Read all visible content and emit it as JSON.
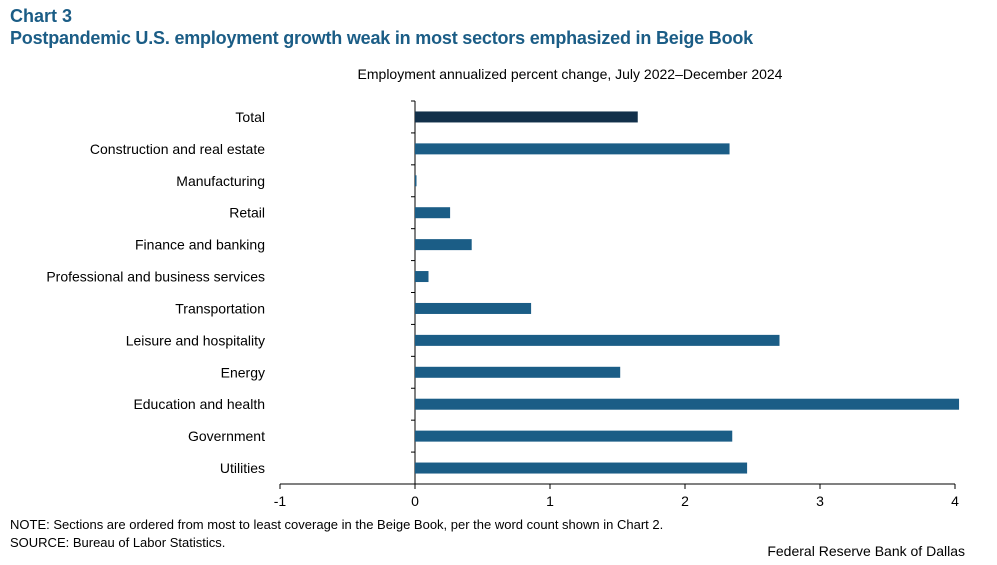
{
  "header": {
    "chart_label": "Chart 3",
    "title": "Postpandemic U.S. employment growth weak in most sectors emphasized in Beige Book"
  },
  "footer": {
    "note": "NOTE: Sections are ordered from most to least coverage in the Beige Book, per the word count shown in Chart 2.",
    "source": "SOURCE: Bureau of Labor Statistics.",
    "credit": "Federal Reserve Bank of Dallas"
  },
  "chart_data": {
    "type": "bar",
    "orientation": "horizontal",
    "title": "",
    "subtitle": "Employment annualized percent change, July 2022–December 2024",
    "xlabel": "",
    "ylabel": "",
    "categories": [
      "Total",
      "Construction and real estate",
      "Manufacturing",
      "Retail",
      "Finance and banking",
      "Professional and business services",
      "Transportation",
      "Leisure and hospitality",
      "Energy",
      "Education and health",
      "Government",
      "Utilities"
    ],
    "values": [
      1.65,
      2.33,
      0.01,
      0.26,
      0.42,
      0.1,
      0.86,
      2.7,
      1.52,
      4.03,
      2.35,
      2.46
    ],
    "xlim": [
      -1,
      4
    ],
    "xticks": [
      "-1",
      "0",
      "1",
      "2",
      "3",
      "4"
    ],
    "grid": false,
    "legend": "none",
    "colors": {
      "total": "#12304a",
      "sector": "#1b5d86"
    }
  }
}
